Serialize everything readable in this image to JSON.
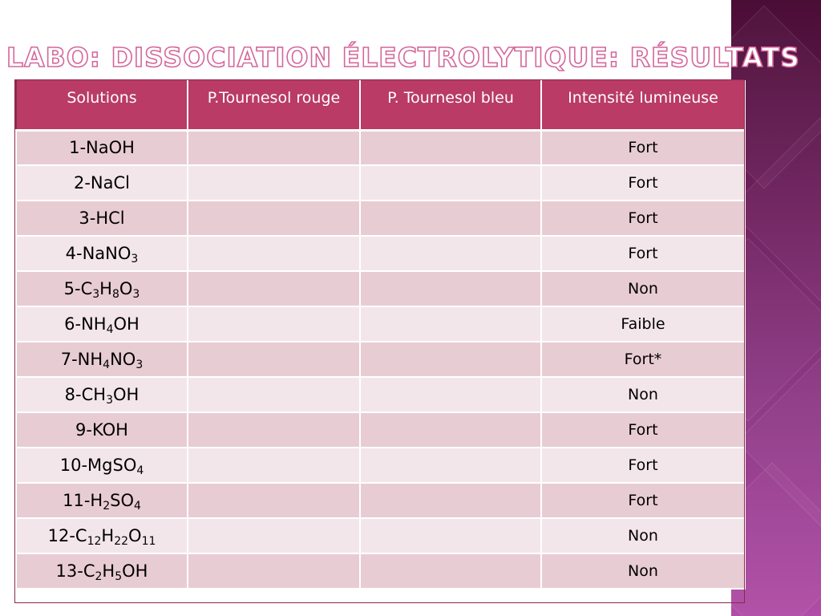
{
  "slide": {
    "title": "Labo: Dissociation électrolytique: Résultats"
  },
  "table": {
    "headers": [
      "Solutions",
      "P.Tournesol rouge",
      "P. Tournesol bleu",
      "Intensité lumineuse"
    ],
    "rows": [
      {
        "solution": [
          {
            "t": "1-NaOH"
          }
        ],
        "rouge": "",
        "bleu": "",
        "intensite": "Fort"
      },
      {
        "solution": [
          {
            "t": "2-NaCl"
          }
        ],
        "rouge": "",
        "bleu": "",
        "intensite": "Fort"
      },
      {
        "solution": [
          {
            "t": "3-HCl"
          }
        ],
        "rouge": "",
        "bleu": "",
        "intensite": "Fort"
      },
      {
        "solution": [
          {
            "t": "4-NaNO"
          },
          {
            "t": "3",
            "sub": true
          }
        ],
        "rouge": "",
        "bleu": "",
        "intensite": "Fort"
      },
      {
        "solution": [
          {
            "t": "5-C"
          },
          {
            "t": "3",
            "sub": true
          },
          {
            "t": "H"
          },
          {
            "t": "8",
            "sub": true
          },
          {
            "t": "O"
          },
          {
            "t": "3",
            "sub": true
          }
        ],
        "rouge": "",
        "bleu": "",
        "intensite": "Non"
      },
      {
        "solution": [
          {
            "t": "6-NH"
          },
          {
            "t": "4",
            "sub": true
          },
          {
            "t": "OH"
          }
        ],
        "rouge": "",
        "bleu": "",
        "intensite": "Faible"
      },
      {
        "solution": [
          {
            "t": "7-NH"
          },
          {
            "t": "4",
            "sub": true
          },
          {
            "t": "NO"
          },
          {
            "t": "3",
            "sub": true
          }
        ],
        "rouge": "",
        "bleu": "",
        "intensite": "Fort*"
      },
      {
        "solution": [
          {
            "t": "8-CH"
          },
          {
            "t": "3",
            "sub": true
          },
          {
            "t": "OH"
          }
        ],
        "rouge": "",
        "bleu": "",
        "intensite": "Non"
      },
      {
        "solution": [
          {
            "t": "9-KOH"
          }
        ],
        "rouge": "",
        "bleu": "",
        "intensite": "Fort"
      },
      {
        "solution": [
          {
            "t": "10-MgSO"
          },
          {
            "t": "4",
            "sub": true
          }
        ],
        "rouge": "",
        "bleu": "",
        "intensite": "Fort"
      },
      {
        "solution": [
          {
            "t": "11-H"
          },
          {
            "t": "2",
            "sub": true
          },
          {
            "t": "SO"
          },
          {
            "t": "4",
            "sub": true
          }
        ],
        "rouge": "",
        "bleu": "",
        "intensite": "Fort"
      },
      {
        "solution": [
          {
            "t": "12-C"
          },
          {
            "t": "12",
            "sub": true
          },
          {
            "t": "H"
          },
          {
            "t": "22",
            "sub": true
          },
          {
            "t": "O"
          },
          {
            "t": "11",
            "sub": true
          }
        ],
        "rouge": "",
        "bleu": "",
        "intensite": "Non"
      },
      {
        "solution": [
          {
            "t": "13-C"
          },
          {
            "t": "2",
            "sub": true
          },
          {
            "t": "H"
          },
          {
            "t": "5",
            "sub": true
          },
          {
            "t": "OH"
          }
        ],
        "rouge": "",
        "bleu": "",
        "intensite": "Non"
      }
    ]
  },
  "colors": {
    "header_bg": "#b93b66",
    "row_dark": "#e8ccd4",
    "row_light": "#f3e6ea",
    "title_outline": "#d4679c",
    "side_band": "#6b1f5a"
  }
}
